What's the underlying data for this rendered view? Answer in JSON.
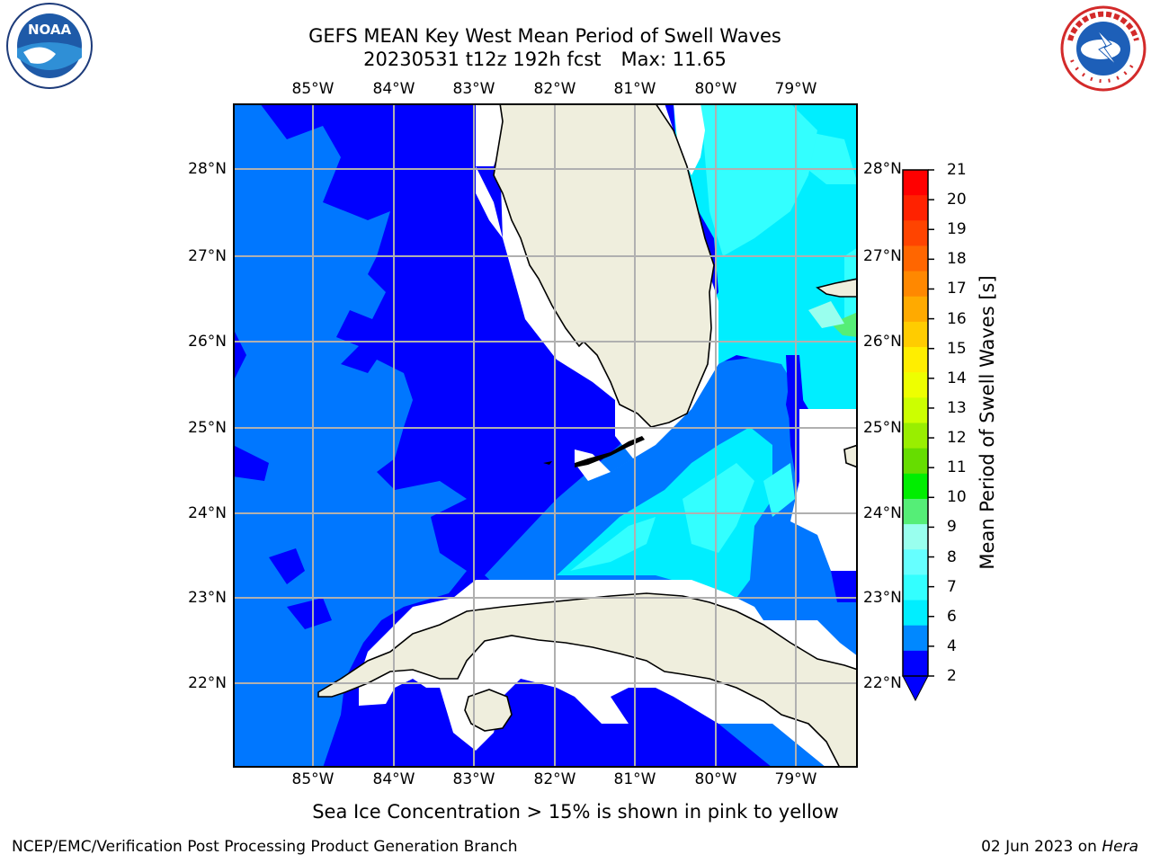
{
  "title": {
    "line1": "GEFS MEAN Key West Mean Period of Swell Waves",
    "run": "20230531 t12z 192h fcst",
    "max": "Max: 11.65"
  },
  "logos": {
    "left": "noa-logo",
    "right": "nws-logo",
    "nws_text": "NATIONAL WEATHER SERVICE",
    "noaa_text": "NOAA"
  },
  "map": {
    "lon_ticks": [
      "85°W",
      "84°W",
      "83°W",
      "82°W",
      "81°W",
      "80°W",
      "79°W"
    ],
    "lat_ticks": [
      "28°N",
      "27°N",
      "26°N",
      "25°N",
      "24°N",
      "23°N",
      "22°N"
    ]
  },
  "colorbar": {
    "label": "Mean Period of Swell Waves [s]",
    "ticks": [
      "21",
      "20",
      "19",
      "18",
      "17",
      "16",
      "15",
      "14",
      "13",
      "12",
      "11",
      "10",
      "9",
      "8",
      "7",
      "6",
      "4",
      "2"
    ],
    "colors": [
      "#ff0000",
      "#ff2200",
      "#ff4400",
      "#ff6600",
      "#ff8800",
      "#ffaa00",
      "#ffcc00",
      "#ffee00",
      "#eeff00",
      "#ccff00",
      "#99ee00",
      "#66dd00",
      "#00ee00",
      "#55ee77",
      "#99ffee",
      "#66ffff",
      "#33ffff",
      "#00eeff",
      "#0088ff",
      "#0000ff"
    ]
  },
  "note": "Sea Ice Concentration > 15% is shown in pink to yellow",
  "footer": {
    "left": "NCEP/EMC/Verification Post Processing Product Generation Branch",
    "date": "02 Jun 2023 on ",
    "host": "Hera"
  }
}
